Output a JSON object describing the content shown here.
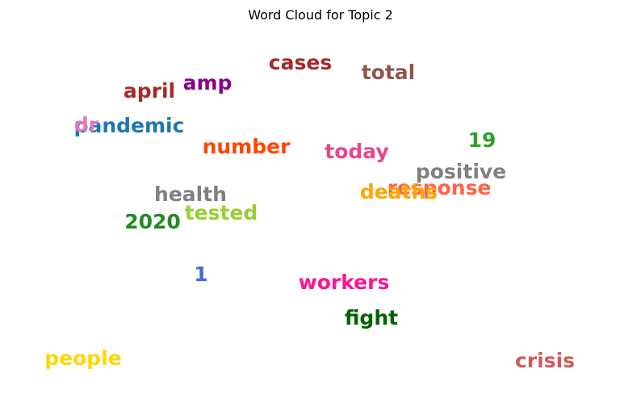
{
  "chart_data": {
    "type": "wordcloud",
    "title": "Word Cloud for Topic 2",
    "words": [
      {
        "text": "cases",
        "color": "#a52a2a"
      },
      {
        "text": "total",
        "color": "#8c564b"
      },
      {
        "text": "april",
        "color": "#a52a2a"
      },
      {
        "text": "amp",
        "color": "#8b008b"
      },
      {
        "text": "pandemic",
        "color": "#1f77b4"
      },
      {
        "text": "dr",
        "color": "#e377c2"
      },
      {
        "text": "number",
        "color": "#ff4500"
      },
      {
        "text": "today",
        "color": "#e8458b"
      },
      {
        "text": "19",
        "color": "#2ca02c"
      },
      {
        "text": "positive",
        "color": "#808080"
      },
      {
        "text": "response",
        "color": "#ff6347"
      },
      {
        "text": "deaths",
        "color": "#ffa500"
      },
      {
        "text": "health",
        "color": "#808080"
      },
      {
        "text": "tested",
        "color": "#9acd32"
      },
      {
        "text": "2020",
        "color": "#228b22"
      },
      {
        "text": "1",
        "color": "#4169e1"
      },
      {
        "text": "workers",
        "color": "#ff1493"
      },
      {
        "text": "fight",
        "color": "#006400"
      },
      {
        "text": "people",
        "color": "#ffd700"
      },
      {
        "text": "crisis",
        "color": "#cd5c5c"
      }
    ]
  }
}
